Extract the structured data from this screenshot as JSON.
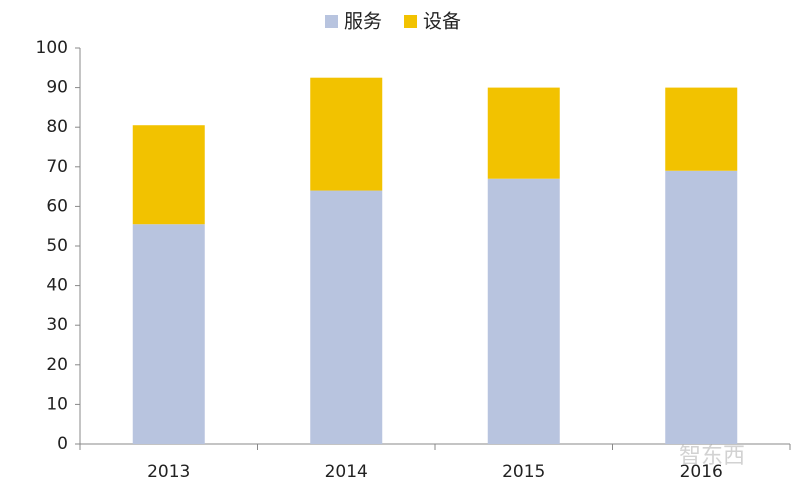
{
  "chart_data": {
    "type": "stacked_bar",
    "categories": [
      "2013",
      "2014",
      "2015",
      "2016"
    ],
    "series": [
      {
        "name": "服务",
        "color": "#b8c4df",
        "values": [
          55.5,
          64,
          67,
          69
        ]
      },
      {
        "name": "设备",
        "color": "#f2c200",
        "values": [
          25,
          28.5,
          23,
          21
        ]
      }
    ],
    "ylim": [
      0,
      100
    ],
    "yticks": [
      0,
      10,
      20,
      30,
      40,
      50,
      60,
      70,
      80,
      90,
      100
    ],
    "grid": false,
    "legend": "top",
    "watermark": "智东西"
  }
}
